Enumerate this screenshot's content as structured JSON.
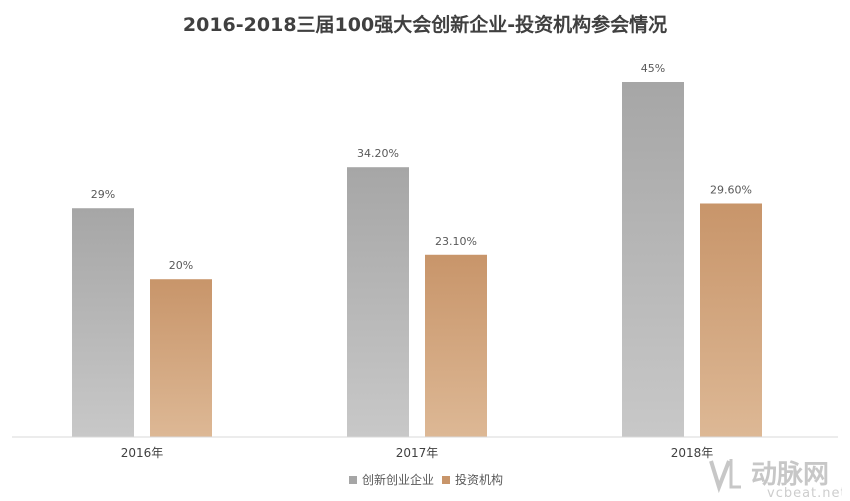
{
  "chart_data": {
    "type": "bar",
    "title": "2016-2018三届100强大会创新企业-投资机构参会情况",
    "categories": [
      "2016年",
      "2017年",
      "2018年"
    ],
    "series": [
      {
        "name": "创新创业企业",
        "values": [
          29,
          34.2,
          45
        ],
        "labels": [
          "29%",
          "34.20%",
          "45%"
        ],
        "color": "#a6a6a6"
      },
      {
        "name": "投资机构",
        "values": [
          20,
          23.1,
          29.6
        ],
        "labels": [
          "20%",
          "23.10%",
          "29.60%"
        ],
        "color": "#c8956a"
      }
    ],
    "ylim": [
      0,
      45
    ],
    "grid": false,
    "legend": "bottom"
  },
  "watermark": {
    "brand": "动脉网",
    "url": "vcbeat.net"
  }
}
